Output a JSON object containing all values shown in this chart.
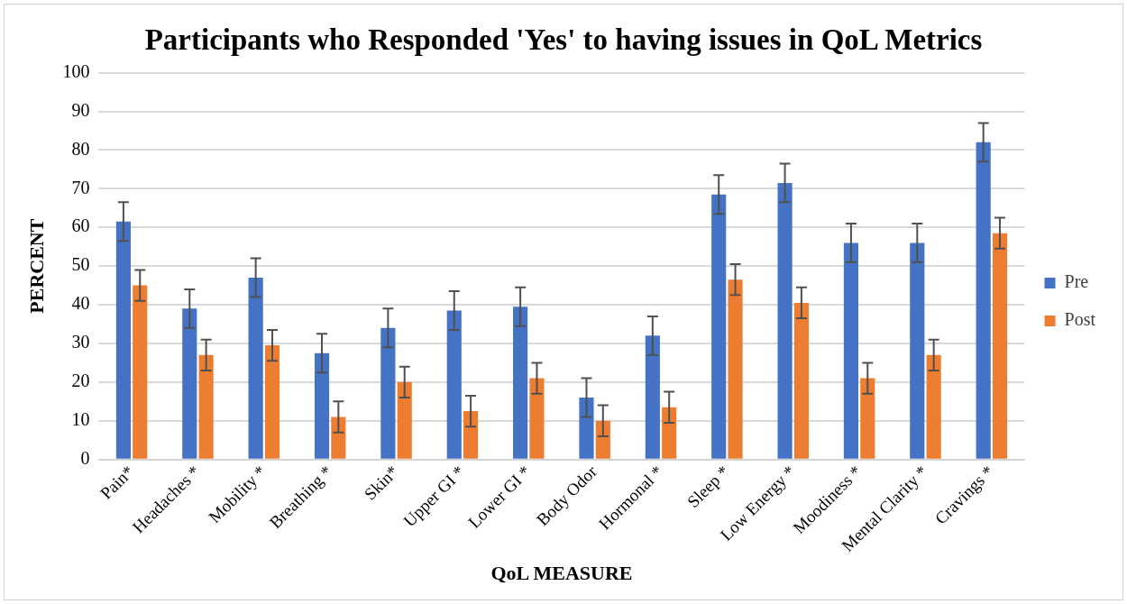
{
  "chart_data": {
    "type": "bar",
    "title": "Participants who Responded 'Yes' to having issues in QoL Metrics",
    "xlabel": "QoL MEASURE",
    "ylabel": "PERCENT",
    "categories": [
      "Pain*",
      "Headaches *",
      "Mobility *",
      "Breathing *",
      "Skin*",
      "Upper GI *",
      "Lower GI *",
      "Body Odor",
      "Hormonal *",
      "Sleep *",
      "Low Energy *",
      "Moodiness *",
      "Mental Clarity *",
      "Cravings *"
    ],
    "series": [
      {
        "name": "Pre",
        "color": "#4472c4",
        "values": [
          61.5,
          39,
          47,
          27.5,
          34,
          38.5,
          39.5,
          16,
          32,
          68.5,
          71.5,
          56,
          56,
          82
        ],
        "errors": [
          5,
          5,
          5,
          5,
          5,
          5,
          5,
          5,
          5,
          5,
          5,
          5,
          5,
          5
        ]
      },
      {
        "name": "Post",
        "color": "#ed7d31",
        "values": [
          45,
          27,
          29.5,
          11,
          20,
          12.5,
          21,
          10,
          13.5,
          46.5,
          40.5,
          21,
          27,
          58.5
        ],
        "errors": [
          4,
          4,
          4,
          4,
          4,
          4,
          4,
          4,
          4,
          4,
          4,
          4,
          4,
          4
        ]
      }
    ],
    "ylim": [
      0,
      100
    ],
    "yticks": [
      0,
      10,
      20,
      30,
      40,
      50,
      60,
      70,
      80,
      90,
      100
    ],
    "grid": "y",
    "legend": "right"
  }
}
